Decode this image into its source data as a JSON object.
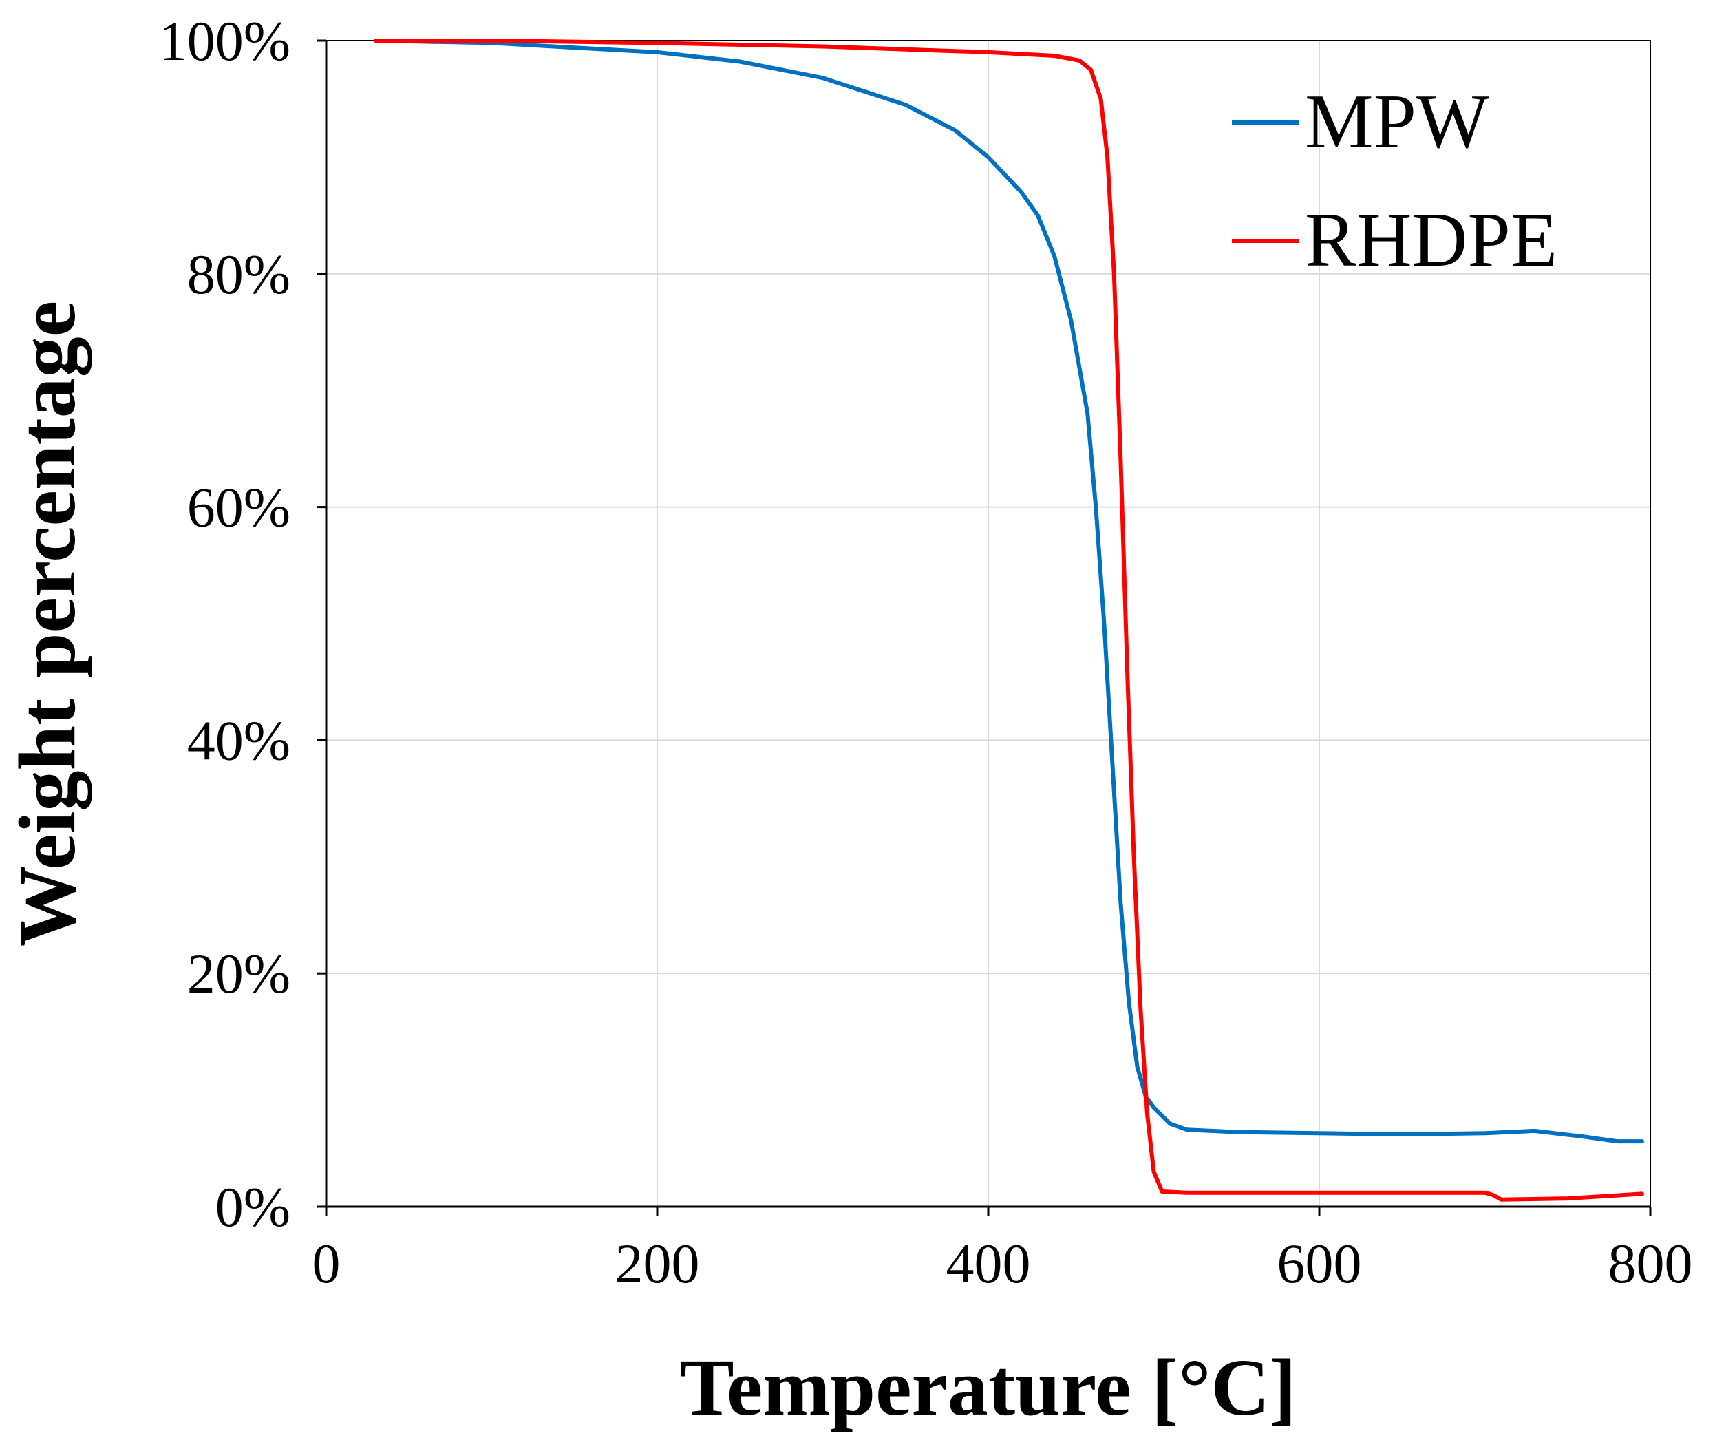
{
  "chart_data": {
    "type": "line",
    "title": "",
    "xlabel": "Temperature [°C]",
    "ylabel": "Weight percentage",
    "xlim": [
      0,
      800
    ],
    "ylim": [
      0,
      100
    ],
    "x_ticks": [
      0,
      200,
      400,
      600,
      800
    ],
    "x_tick_labels": [
      "0",
      "200",
      "400",
      "600",
      "800"
    ],
    "y_ticks": [
      0,
      20,
      40,
      60,
      80,
      100
    ],
    "y_tick_labels": [
      "0%",
      "20%",
      "40%",
      "60%",
      "80%",
      "100%"
    ],
    "grid": true,
    "legend_position": "top-right",
    "series": [
      {
        "name": "MPW",
        "color": "#0070c0",
        "points": [
          [
            30,
            100
          ],
          [
            100,
            99.8
          ],
          [
            150,
            99.4
          ],
          [
            200,
            99.0
          ],
          [
            250,
            98.2
          ],
          [
            300,
            96.8
          ],
          [
            350,
            94.5
          ],
          [
            380,
            92.3
          ],
          [
            400,
            90.0
          ],
          [
            420,
            87.0
          ],
          [
            430,
            85.0
          ],
          [
            440,
            81.5
          ],
          [
            450,
            76.0
          ],
          [
            460,
            68.0
          ],
          [
            465,
            60.0
          ],
          [
            470,
            50.0
          ],
          [
            475,
            38.0
          ],
          [
            480,
            26.0
          ],
          [
            485,
            17.5
          ],
          [
            490,
            12.0
          ],
          [
            495,
            9.5
          ],
          [
            500,
            8.5
          ],
          [
            510,
            7.1
          ],
          [
            520,
            6.6
          ],
          [
            550,
            6.4
          ],
          [
            600,
            6.3
          ],
          [
            650,
            6.2
          ],
          [
            700,
            6.3
          ],
          [
            730,
            6.5
          ],
          [
            760,
            6.0
          ],
          [
            780,
            5.6
          ],
          [
            795,
            5.6
          ]
        ]
      },
      {
        "name": "RHDPE",
        "color": "#ff0000",
        "points": [
          [
            30,
            100
          ],
          [
            100,
            100
          ],
          [
            200,
            99.8
          ],
          [
            300,
            99.5
          ],
          [
            400,
            99.0
          ],
          [
            440,
            98.7
          ],
          [
            455,
            98.3
          ],
          [
            462,
            97.5
          ],
          [
            468,
            95.0
          ],
          [
            472,
            90.0
          ],
          [
            476,
            80.0
          ],
          [
            480,
            64.0
          ],
          [
            484,
            46.0
          ],
          [
            488,
            30.0
          ],
          [
            492,
            17.0
          ],
          [
            496,
            8.0
          ],
          [
            500,
            3.0
          ],
          [
            505,
            1.3
          ],
          [
            520,
            1.2
          ],
          [
            600,
            1.2
          ],
          [
            700,
            1.2
          ],
          [
            705,
            1.0
          ],
          [
            710,
            0.6
          ],
          [
            750,
            0.7
          ],
          [
            795,
            1.1
          ]
        ]
      }
    ]
  }
}
